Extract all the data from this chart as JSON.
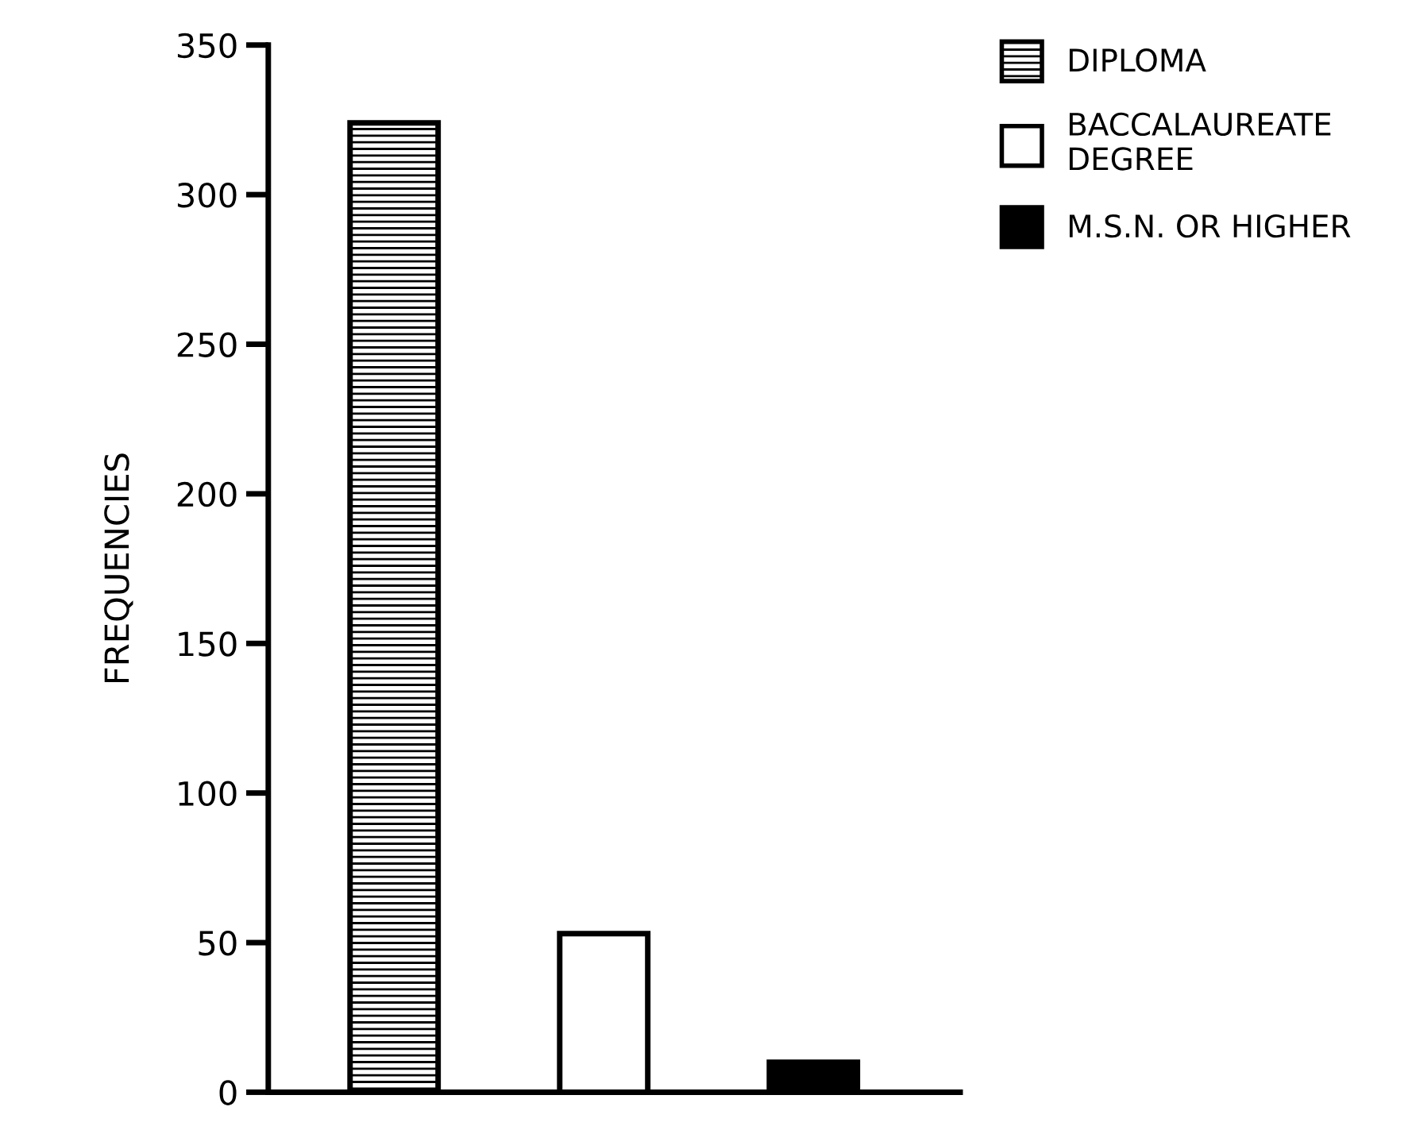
{
  "chart_data": {
    "type": "bar",
    "ylabel": "FREQUENCIES",
    "categories": [
      null,
      null,
      null
    ],
    "series": [
      {
        "name": "DIPLOMA",
        "color": "#000000",
        "values": [
          324,
          null,
          null
        ]
      },
      {
        "name": "BACCALAUREATE\nDEGREE",
        "color": "#ffffff",
        "values": [
          null,
          53,
          null
        ]
      },
      {
        "name": "M.S.N. OR HIGHER",
        "color": "#000000",
        "values": [
          null,
          null,
          10
        ]
      }
    ],
    "ylim": [
      0,
      350
    ],
    "yticks": [
      0,
      50,
      100,
      150,
      200,
      250,
      300,
      350
    ],
    "grid": false,
    "legend": "top right"
  }
}
